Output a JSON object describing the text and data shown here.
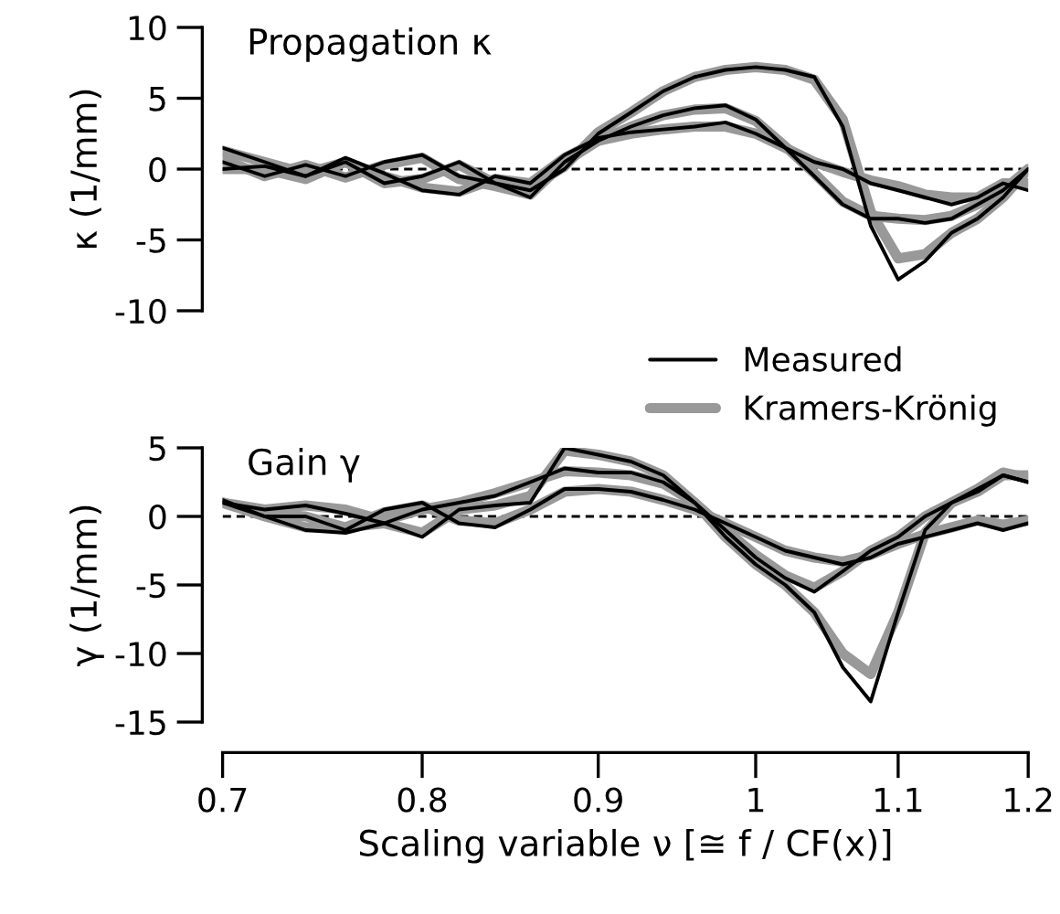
{
  "chart_data": [
    {
      "type": "line",
      "title": "Propagation κ",
      "ylabel": "κ (1/mm)",
      "log": "x",
      "xlim": [
        0.7,
        1.2
      ],
      "ylim": [
        -10,
        10
      ],
      "yticks": [
        -10,
        -5,
        0,
        5,
        10
      ],
      "tick_labels": "y",
      "grid": false,
      "legend": "bottom right",
      "marker": "none",
      "line_style": "solid",
      "x": [
        0.7,
        0.72,
        0.74,
        0.76,
        0.78,
        0.8,
        0.82,
        0.84,
        0.86,
        0.88,
        0.9,
        0.92,
        0.94,
        0.96,
        0.98,
        1.0,
        1.02,
        1.04,
        1.06,
        1.08,
        1.1,
        1.12,
        1.14,
        1.16,
        1.18,
        1.2
      ],
      "ref_lines": [
        {
          "axis": "y",
          "value": 0,
          "color": "#000000",
          "line_style": "dashed"
        }
      ],
      "series": [
        {
          "name": "Kramers-Krönig",
          "color": "#999999",
          "values": [
            1.3,
            0.5,
            -0.3,
            0.5,
            -1,
            -0.7,
            0.3,
            -1,
            -1.3,
            0.2,
            2.6,
            4,
            5.5,
            6.5,
            7,
            7.2,
            7,
            6.3,
            3.5,
            -3,
            -6.3,
            -6,
            -4.5,
            -3.5,
            -2,
            0
          ]
        },
        {
          "color": "#999999",
          "values": [
            0.7,
            -0.5,
            0.3,
            -0.6,
            0.3,
            0.8,
            -0.7,
            -1.2,
            -1.8,
            0.5,
            2,
            3,
            3.8,
            4.2,
            4.3,
            3.4,
            1.6,
            -0.3,
            -2.3,
            -3.3,
            -3.5,
            -3.6,
            -3.3,
            -2.5,
            -1.5,
            0
          ]
        },
        {
          "color": "#999999",
          "values": [
            0,
            0,
            -0.7,
            0.5,
            -0.5,
            -1.3,
            -1.6,
            -0.7,
            -1,
            0.8,
            2,
            2.5,
            2.8,
            3,
            3,
            2.5,
            1.5,
            0.5,
            -0.2,
            -0.8,
            -1.2,
            -1.8,
            -2,
            -2,
            -1,
            -1
          ]
        },
        {
          "name": "Measured",
          "color": "#000000",
          "values": [
            1.5,
            0.5,
            -0.5,
            0.5,
            -1,
            -0.5,
            0.5,
            -1,
            -1.5,
            0,
            2.5,
            4,
            5.5,
            6.5,
            7,
            7.2,
            7,
            6.5,
            3,
            -4,
            -7.8,
            -6.5,
            -4.5,
            -3.5,
            -2,
            0
          ]
        },
        {
          "color": "#000000",
          "values": [
            0.5,
            -0.5,
            0.3,
            -0.5,
            0.5,
            1,
            -0.5,
            -1,
            -2,
            0.5,
            2,
            3,
            3.8,
            4.3,
            4.5,
            3.5,
            1.5,
            -0.5,
            -2.5,
            -3.5,
            -3.5,
            -3.8,
            -3.5,
            -2.5,
            -1.5,
            0
          ]
        },
        {
          "color": "#000000",
          "values": [
            0,
            0.2,
            -0.5,
            0.8,
            -0.3,
            -1.5,
            -1.8,
            -0.5,
            -1,
            1,
            2.2,
            2.6,
            2.8,
            3,
            3.3,
            2.5,
            1.5,
            0.5,
            0,
            -1,
            -1.5,
            -2,
            -2.5,
            -2,
            -1,
            -1.5
          ]
        }
      ]
    },
    {
      "type": "line",
      "title": "Gain γ",
      "ylabel": "γ (1/mm)",
      "xlabel": "Scaling variable ν [≅ f / CF(x)]",
      "log": "x",
      "xlim": [
        0.7,
        1.2
      ],
      "xticks": [
        0.7,
        0.8,
        0.9,
        1,
        1.1,
        1.2
      ],
      "ylim": [
        -15,
        5
      ],
      "yticks": [
        -15,
        -10,
        -5,
        0,
        5
      ],
      "grid": false,
      "marker": "none",
      "line_style": "solid",
      "x": [
        0.7,
        0.72,
        0.74,
        0.76,
        0.78,
        0.8,
        0.82,
        0.84,
        0.86,
        0.88,
        0.9,
        0.92,
        0.94,
        0.96,
        0.98,
        1.0,
        1.02,
        1.04,
        1.06,
        1.08,
        1.1,
        1.12,
        1.14,
        1.16,
        1.18,
        1.2
      ],
      "ref_lines": [
        {
          "axis": "y",
          "value": 0,
          "color": "#000000",
          "line_style": "dashed"
        }
      ],
      "series": [
        {
          "color": "#999999",
          "values": [
            1,
            0,
            -0.8,
            -0.8,
            -0.5,
            -1.2,
            0.5,
            0.8,
            1.5,
            4.8,
            4.5,
            4,
            3,
            1,
            -1.5,
            -3.5,
            -5,
            -7,
            -10,
            -11.5,
            -7,
            -1.2,
            1,
            1.8,
            3,
            3
          ]
        },
        {
          "color": "#999999",
          "values": [
            1,
            0.5,
            0.8,
            0.5,
            -0.3,
            0.5,
            1,
            1.7,
            2.5,
            3.3,
            3.2,
            3,
            2.4,
            1,
            -1,
            -2.8,
            -4.3,
            -5.2,
            -4,
            -2.5,
            -1.5,
            0,
            1,
            2,
            3.2,
            2.8
          ]
        },
        {
          "color": "#999999",
          "values": [
            1,
            0.2,
            0,
            -0.8,
            0.3,
            0.8,
            -0.3,
            -0.5,
            0.5,
            1.8,
            2,
            1.8,
            1.2,
            0.5,
            -0.5,
            -1.5,
            -2.5,
            -3,
            -3.3,
            -2.8,
            -2,
            -1.3,
            -0.8,
            -0.3,
            -0.6,
            -0.3
          ]
        },
        {
          "color": "#000000",
          "values": [
            1,
            0,
            -1,
            -1.2,
            -0.5,
            -1.5,
            0.5,
            0.8,
            1,
            5,
            4.5,
            4,
            3,
            1,
            -1.5,
            -3.5,
            -5,
            -7,
            -11,
            -13.5,
            -7,
            -1,
            1,
            1.8,
            3,
            2.5
          ]
        },
        {
          "color": "#000000",
          "values": [
            1,
            0.5,
            0.8,
            0.2,
            -0.5,
            0.5,
            1,
            1.5,
            2.5,
            3.5,
            3.2,
            3.2,
            2.5,
            1,
            -1,
            -3,
            -4.5,
            -5.5,
            -4,
            -2.5,
            -1.5,
            0,
            1,
            2,
            3,
            2.5
          ]
        },
        {
          "color": "#000000",
          "values": [
            1.2,
            0,
            0,
            -1,
            0.5,
            1,
            -0.5,
            -0.8,
            0.5,
            2,
            2,
            1.8,
            1.2,
            0.5,
            -0.5,
            -1.5,
            -2.5,
            -3,
            -3.5,
            -3,
            -2,
            -1.5,
            -1,
            -0.5,
            -1,
            -0.5
          ]
        }
      ]
    }
  ]
}
